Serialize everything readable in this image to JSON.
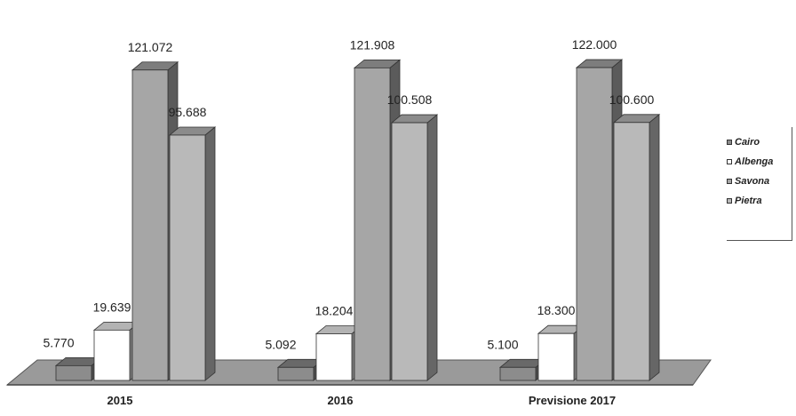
{
  "chart_data": {
    "type": "bar",
    "categories": [
      "2015",
      "2016",
      "Previsione 2017"
    ],
    "series": [
      {
        "name": "Cairo",
        "values": [
          5770,
          5092,
          5100
        ],
        "labels": [
          "5.770",
          "5.092",
          "5.100"
        ]
      },
      {
        "name": "Albenga",
        "values": [
          19639,
          18204,
          18300
        ],
        "labels": [
          "19.639",
          "18.204",
          "18.300"
        ]
      },
      {
        "name": "Savona",
        "values": [
          121072,
          121908,
          122000
        ],
        "labels": [
          "121.072",
          "121.908",
          "122.000"
        ]
      },
      {
        "name": "Pietra",
        "values": [
          95688,
          100508,
          100600
        ],
        "labels": [
          "95.688",
          "100.508",
          "100.600"
        ]
      }
    ],
    "ylim": [
      0,
      130000
    ],
    "grid": false,
    "legend_position": "right",
    "style": "3d-columns"
  },
  "colors": {
    "Cairo": "#8c8c8c",
    "Albenga": "#ffffff",
    "Savona": "#a6a6a6",
    "Pietra": "#b9b9b9",
    "floor": "#9a9a9a"
  }
}
